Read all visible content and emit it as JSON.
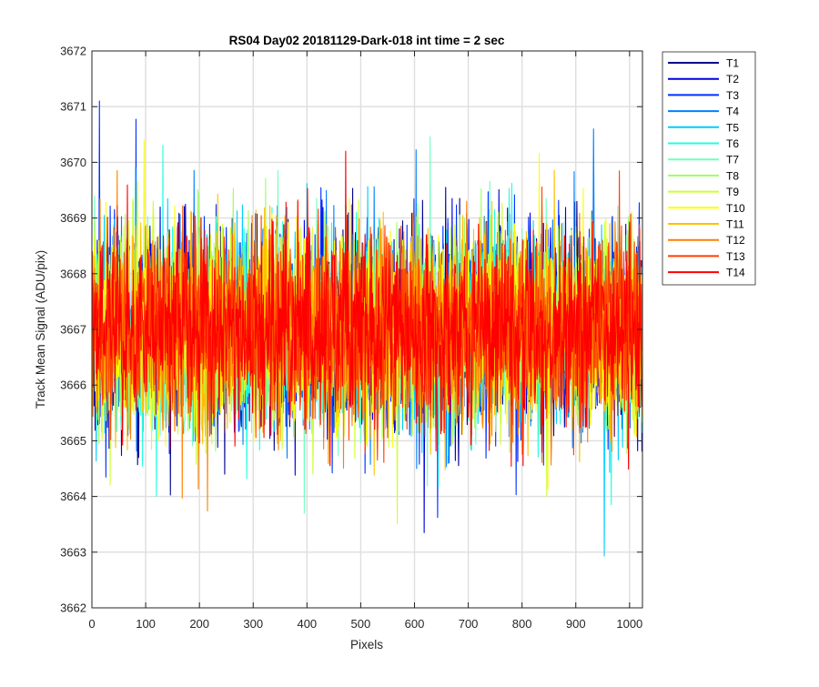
{
  "chart_data": {
    "type": "line",
    "title": "RS04 Day02 20181129-Dark-018 int time = 2 sec",
    "xlabel": "Pixels",
    "ylabel": "Track Mean Signal (ADU/pix)",
    "xlim": [
      0,
      1024
    ],
    "ylim": [
      3662,
      3672
    ],
    "xticks": [
      0,
      100,
      200,
      300,
      400,
      500,
      600,
      700,
      800,
      900,
      1000
    ],
    "yticks": [
      3662,
      3663,
      3664,
      3665,
      3666,
      3667,
      3668,
      3669,
      3670,
      3671,
      3672
    ],
    "grid": true,
    "legend_position": "outside-top-right",
    "n_points": 1024,
    "noise_model": {
      "mean": 3667.0,
      "std": 0.85,
      "min_observed": 3662.93,
      "max_observed": 3671.1
    },
    "notable_points": [
      {
        "series": "T3",
        "x": 14,
        "y": 3671.1
      },
      {
        "series": "T5",
        "x": 953,
        "y": 3662.93
      },
      {
        "series": "T4",
        "x": 933,
        "y": 3670.6
      },
      {
        "series": "T14",
        "x": 472,
        "y": 3670.2
      },
      {
        "series": "T10",
        "x": 97,
        "y": 3670.4
      },
      {
        "series": "T2",
        "x": 618,
        "y": 3663.35
      }
    ],
    "series": [
      {
        "name": "T1",
        "color": "#00008f"
      },
      {
        "name": "T2",
        "color": "#0000df"
      },
      {
        "name": "T3",
        "color": "#0030ff"
      },
      {
        "name": "T4",
        "color": "#0080ff"
      },
      {
        "name": "T5",
        "color": "#00cfff"
      },
      {
        "name": "T6",
        "color": "#20ffdf"
      },
      {
        "name": "T7",
        "color": "#70ffbf"
      },
      {
        "name": "T8",
        "color": "#9fff60"
      },
      {
        "name": "T9",
        "color": "#cfff30"
      },
      {
        "name": "T10",
        "color": "#ffff00"
      },
      {
        "name": "T11",
        "color": "#ffbf00"
      },
      {
        "name": "T12",
        "color": "#ff8000"
      },
      {
        "name": "T13",
        "color": "#ff4000"
      },
      {
        "name": "T14",
        "color": "#ff0000"
      }
    ]
  }
}
